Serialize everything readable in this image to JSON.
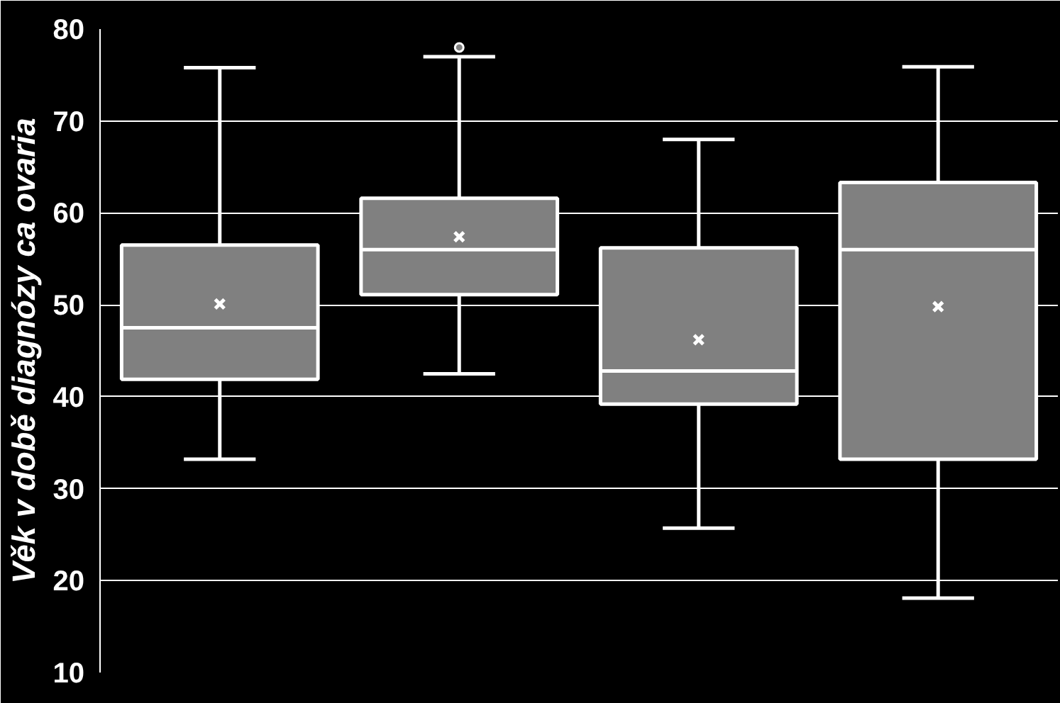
{
  "chart_data": {
    "type": "box",
    "ylabel": "Věk v době diagnózy ca ovaria",
    "categories": [
      null,
      null,
      null,
      null
    ],
    "color": "#808080",
    "ylim": [
      10,
      80
    ],
    "yticks": [
      10,
      20,
      30,
      40,
      50,
      60,
      70,
      80
    ],
    "grid": "y",
    "boxes": [
      {
        "low": 33.2,
        "q1": 41.9,
        "median": 47.5,
        "q3": 56.5,
        "high": 75.8,
        "mean": 50.1
      },
      {
        "low": 42.5,
        "q1": 51.1,
        "median": 56,
        "q3": 61.6,
        "high": 77,
        "mean": 57.4,
        "outliers": [
          78
        ]
      },
      {
        "low": 25.7,
        "q1": 39.2,
        "median": 42.8,
        "q3": 56.2,
        "high": 68,
        "mean": 46.2
      },
      {
        "low": 18.1,
        "q1": 33.2,
        "median": 56,
        "q3": 63.3,
        "high": 75.9,
        "mean": 49.8
      }
    ]
  }
}
